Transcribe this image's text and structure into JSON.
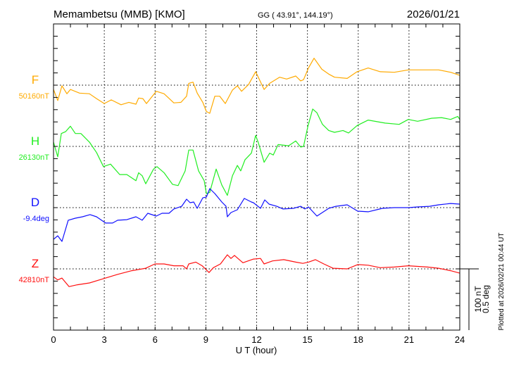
{
  "header": {
    "station": "Memambetsu (MMB)  [KMO]",
    "coords": "GG ( 43.91°, 144.19°)",
    "date": "2026/01/21"
  },
  "footer": {
    "plotted": "Plotted at 2026/02/21 00:44 UT"
  },
  "chart_data": {
    "type": "line",
    "xlabel": "U T (hour)",
    "xlim": [
      0,
      24
    ],
    "xticks": [
      "0",
      "3",
      "6",
      "9",
      "12",
      "15",
      "18",
      "21",
      "24"
    ],
    "grid": true,
    "scale_bar": {
      "nT": "100 nT",
      "deg": "0.5 deg"
    },
    "series": [
      {
        "name": "F",
        "base_label": "50160nT",
        "base": 50160,
        "unit": "nT",
        "scale": 100,
        "color": "#FFAA00",
        "x": [
          0,
          0.25,
          0.5,
          0.79,
          1,
          1.54,
          2.12,
          2.54,
          3,
          3.41,
          3.99,
          4.45,
          4.87,
          5.03,
          5.28,
          5.49,
          6.07,
          6.53,
          7.11,
          7.53,
          7.86,
          7.99,
          8.24,
          8.49,
          8.82,
          9.03,
          9.23,
          9.53,
          9.82,
          10.15,
          10.57,
          10.86,
          11.11,
          11.52,
          11.94,
          12.44,
          12.77,
          13.35,
          13.77,
          14.31,
          14.6,
          14.77,
          15.06,
          15.39,
          15.85,
          16.26,
          16.6,
          17.35,
          17.93,
          18.59,
          19.3,
          20.13,
          20.96,
          22.09,
          22.75,
          23.46,
          24
        ],
        "y": [
          50153,
          50135,
          50159,
          50146,
          50153,
          50147,
          50146,
          50138,
          50130,
          50136,
          50128,
          50132,
          50129,
          50139,
          50138,
          50130,
          50150,
          50146,
          50131,
          50132,
          50142,
          50163,
          50165,
          50147,
          50132,
          50117,
          50114,
          50142,
          50142,
          50130,
          50152,
          50159,
          50150,
          50161,
          50182,
          50153,
          50163,
          50173,
          50170,
          50175,
          50167,
          50169,
          50188,
          50204,
          50186,
          50178,
          50173,
          50171,
          50182,
          50188,
          50182,
          50181,
          50185,
          50185,
          50185,
          50181,
          50176
        ]
      },
      {
        "name": "H",
        "base_label": "26130nT",
        "base": 26130,
        "unit": "nT",
        "scale": 100,
        "color": "#22EE22",
        "x": [
          0,
          0.25,
          0.46,
          0.71,
          1,
          1.29,
          1.62,
          2.12,
          2.54,
          2.95,
          3.37,
          3.91,
          4.33,
          4.87,
          5.03,
          5.24,
          5.45,
          5.91,
          6.11,
          6.53,
          7.03,
          7.36,
          7.78,
          7.99,
          8.24,
          8.57,
          8.9,
          9.03,
          9.23,
          9.61,
          9.94,
          10.27,
          10.57,
          10.86,
          11.06,
          11.31,
          11.69,
          11.94,
          12.1,
          12.44,
          12.77,
          12.98,
          13.27,
          13.89,
          14.31,
          14.6,
          14.77,
          15.02,
          15.31,
          15.56,
          15.89,
          16.26,
          16.6,
          17.1,
          17.43,
          17.93,
          18.59,
          19.59,
          20.42,
          20.96,
          21.51,
          22.34,
          22.92,
          23.46,
          23.88,
          24
        ],
        "y": [
          26137,
          26113,
          26151,
          26154,
          26163,
          26151,
          26151,
          26137,
          26120,
          26097,
          26101,
          26084,
          26084,
          26074,
          26087,
          26082,
          26069,
          26093,
          26097,
          26087,
          26068,
          26066,
          26090,
          26124,
          26124,
          26090,
          26074,
          26053,
          26055,
          26093,
          26067,
          26050,
          26082,
          26099,
          26090,
          26108,
          26119,
          26148,
          26136,
          26104,
          26119,
          26116,
          26133,
          26131,
          26139,
          26129,
          26130,
          26162,
          26191,
          26185,
          26166,
          26156,
          26153,
          26156,
          26152,
          26164,
          26173,
          26168,
          26166,
          26174,
          26171,
          26176,
          26177,
          26174,
          26179,
          26174
        ]
      },
      {
        "name": "D",
        "base_label": "-9.4deg",
        "base": -9.4,
        "unit": "deg",
        "scale": 0.5,
        "color": "#1010FF",
        "x": [
          0,
          0.25,
          0.5,
          0.87,
          1.29,
          1.71,
          2.16,
          2.54,
          3.08,
          3.49,
          3.79,
          4.33,
          4.87,
          5.24,
          5.57,
          6.07,
          6.41,
          6.82,
          7.11,
          7.57,
          7.86,
          8.07,
          8.28,
          8.49,
          8.82,
          9.03,
          9.23,
          9.53,
          9.94,
          10.19,
          10.27,
          10.48,
          10.86,
          11.27,
          11.69,
          11.81,
          12.23,
          12.48,
          12.73,
          13.19,
          13.56,
          14.18,
          14.6,
          14.85,
          15.06,
          15.56,
          16.26,
          16.68,
          17.35,
          17.97,
          18.59,
          19.43,
          20.13,
          20.96,
          21.51,
          22.21,
          22.75,
          23.46,
          24
        ],
        "y": [
          -9.659,
          -9.63,
          -9.676,
          -9.503,
          -9.486,
          -9.475,
          -9.457,
          -9.475,
          -9.526,
          -9.526,
          -9.503,
          -9.498,
          -9.475,
          -9.503,
          -9.446,
          -9.469,
          -9.446,
          -9.446,
          -9.411,
          -9.389,
          -9.331,
          -9.36,
          -9.354,
          -9.406,
          -9.32,
          -9.314,
          -9.245,
          -9.285,
          -9.354,
          -9.389,
          -9.475,
          -9.44,
          -9.417,
          -9.325,
          -9.354,
          -9.36,
          -9.406,
          -9.337,
          -9.371,
          -9.389,
          -9.411,
          -9.406,
          -9.389,
          -9.411,
          -9.394,
          -9.469,
          -9.406,
          -9.389,
          -9.377,
          -9.429,
          -9.434,
          -9.406,
          -9.4,
          -9.4,
          -9.394,
          -9.389,
          -9.377,
          -9.366,
          -9.371
        ]
      },
      {
        "name": "Z",
        "base_label": "42810nT",
        "base": 42810,
        "unit": "nT",
        "scale": 100,
        "color": "#FF1010",
        "x": [
          0,
          0.25,
          0.5,
          0.92,
          1.41,
          2.12,
          2.95,
          3.79,
          4.62,
          5.45,
          5.99,
          6.53,
          7.11,
          7.65,
          7.86,
          7.99,
          8.4,
          8.78,
          9.19,
          9.44,
          9.86,
          10.27,
          10.48,
          10.69,
          11.19,
          11.81,
          12.23,
          12.44,
          12.94,
          13.6,
          14.31,
          14.73,
          15.06,
          15.47,
          15.97,
          16.51,
          17.35,
          17.97,
          18.59,
          19.3,
          20.13,
          20.96,
          22.09,
          22.75,
          23.46,
          24
        ],
        "y": [
          42797,
          42792,
          42795,
          42781,
          42784,
          42787,
          42794,
          42801,
          42807,
          42811,
          42818,
          42818,
          42815,
          42815,
          42810,
          42818,
          42821,
          42815,
          42804,
          42812,
          42818,
          42833,
          42827,
          42832,
          42820,
          42826,
          42827,
          42818,
          42823,
          42825,
          42821,
          42819,
          42821,
          42825,
          42818,
          42811,
          42810,
          42817,
          42816,
          42812,
          42813,
          42815,
          42813,
          42811,
          42807,
          42803
        ]
      }
    ]
  }
}
